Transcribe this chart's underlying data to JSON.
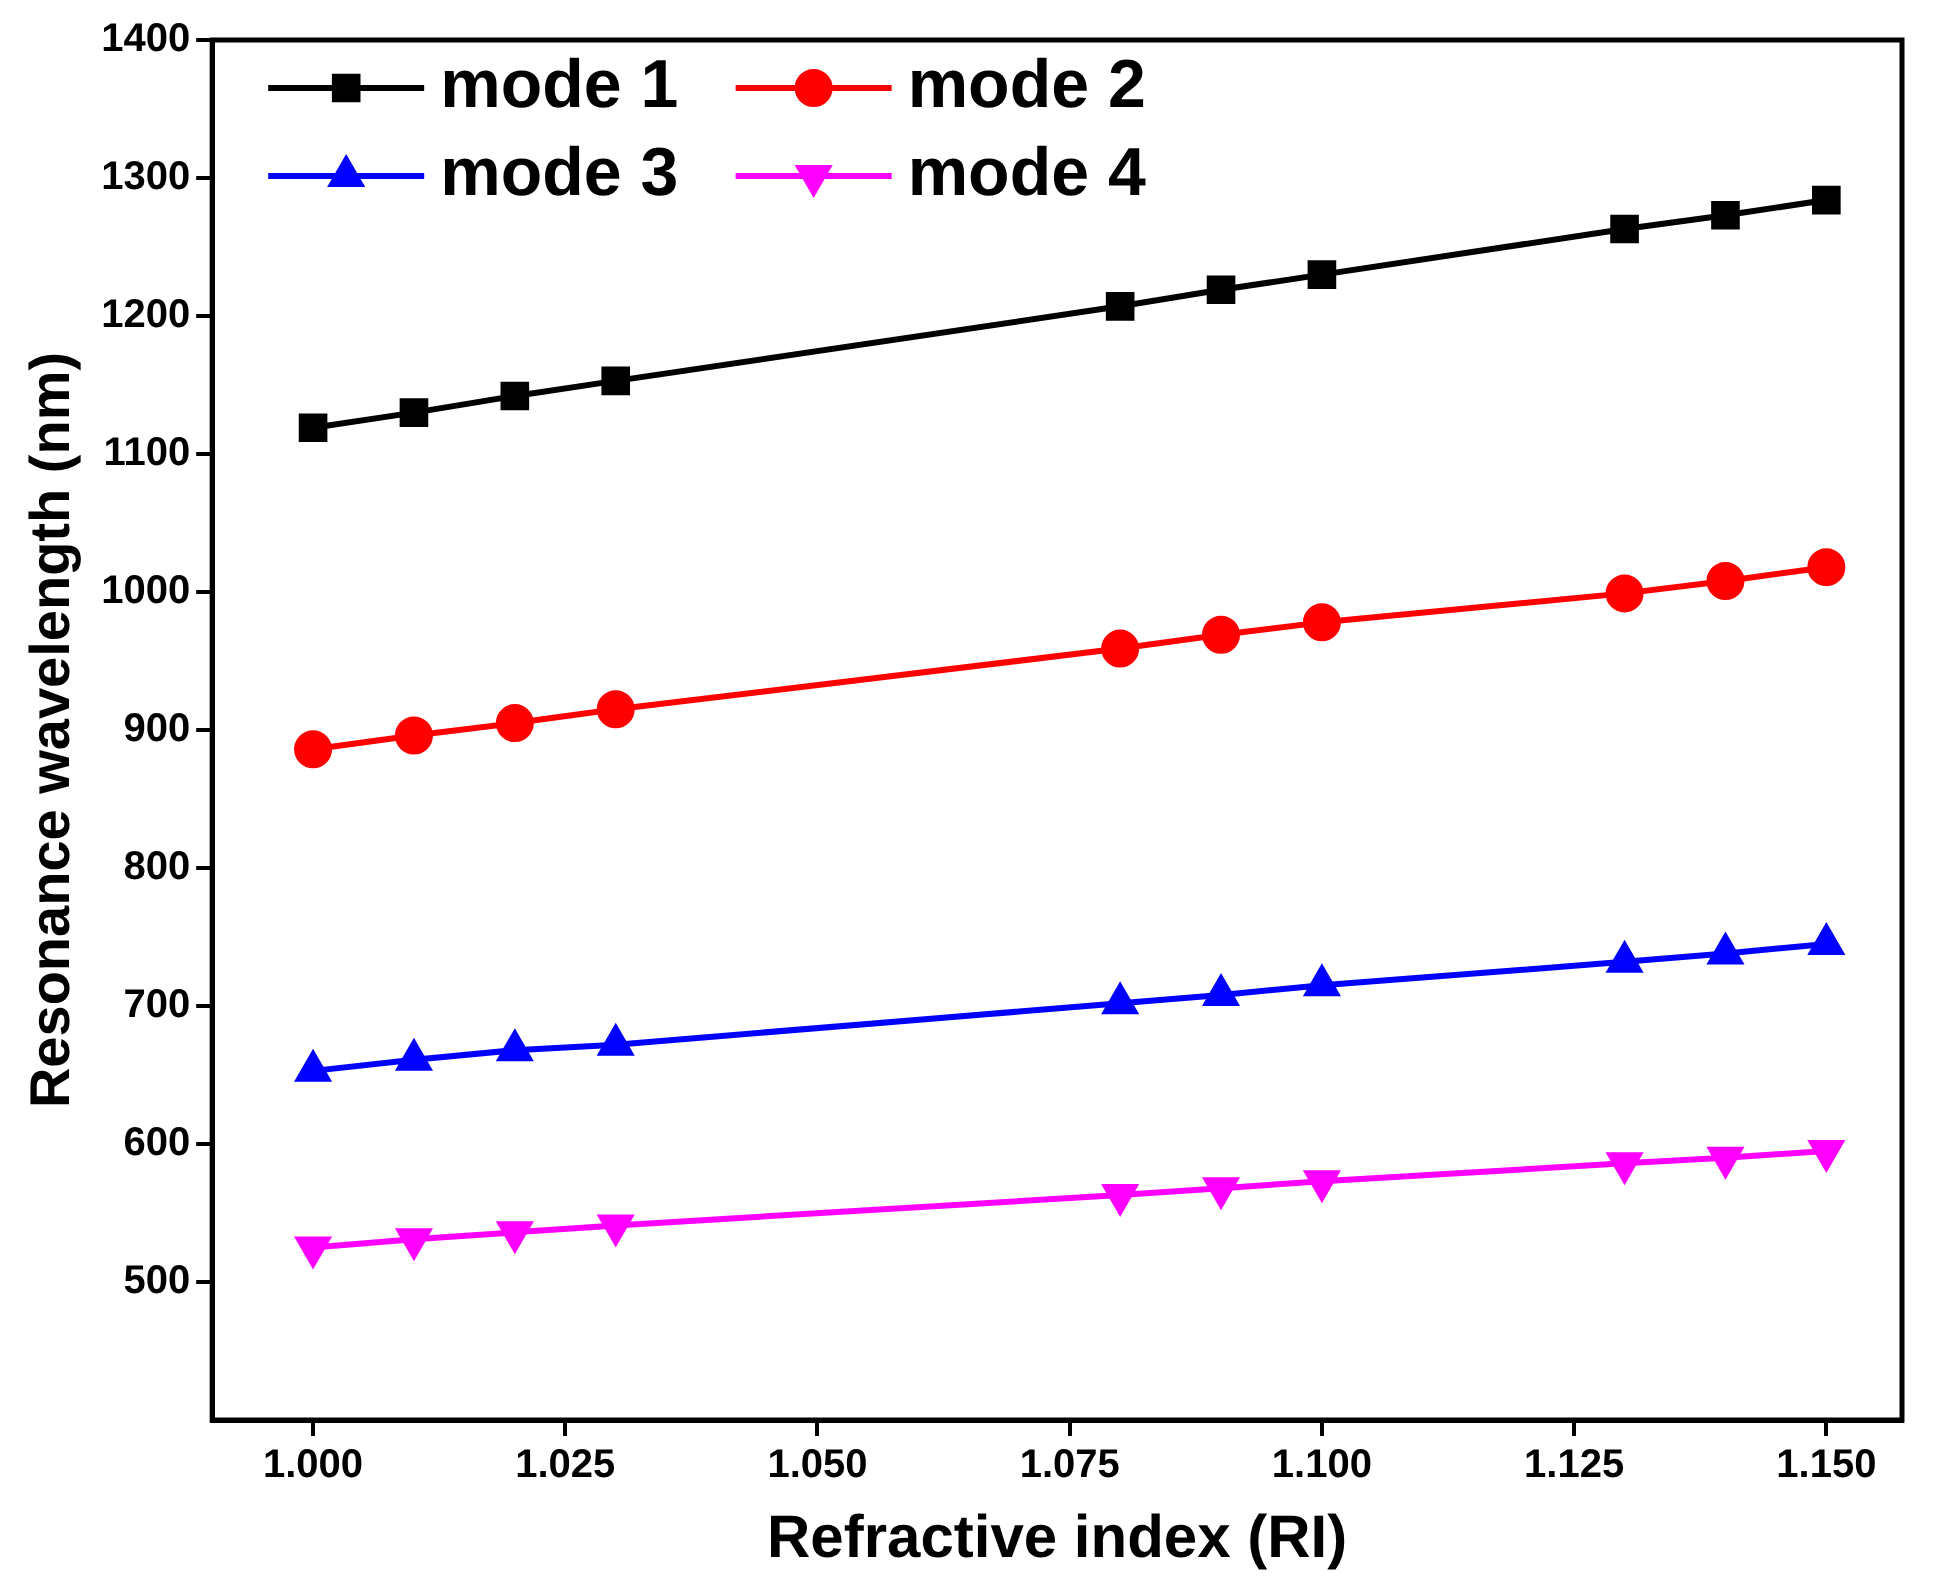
{
  "chart_data": {
    "type": "line",
    "xlabel": "Refractive index (RI)",
    "ylabel": "Resonance wavelength (nm)",
    "x": [
      1.0,
      1.01,
      1.02,
      1.03,
      1.08,
      1.09,
      1.1,
      1.13,
      1.14,
      1.15
    ],
    "series": [
      {
        "name": "mode 1",
        "color": "#000000",
        "marker": "square",
        "values": [
          1119,
          1130,
          1142,
          1153,
          1207,
          1219,
          1230,
          1263,
          1273,
          1284
        ]
      },
      {
        "name": "mode 2",
        "color": "#ff0000",
        "marker": "circle",
        "values": [
          886,
          896,
          905,
          915,
          959,
          969,
          978,
          999,
          1008,
          1018
        ]
      },
      {
        "name": "mode 3",
        "color": "#0000ff",
        "marker": "triangle",
        "values": [
          653,
          661,
          668,
          672,
          702,
          708,
          715,
          732,
          738,
          745
        ]
      },
      {
        "name": "mode 4",
        "color": "#ff00ff",
        "marker": "triangle_down",
        "values": [
          525,
          531,
          536,
          541,
          563,
          568,
          573,
          586,
          590,
          595
        ]
      }
    ],
    "xlim": [
      0.99,
      1.1575
    ],
    "ylim": [
      400,
      1400
    ],
    "xticks": [
      {
        "value": 1.0,
        "label": "1.000"
      },
      {
        "value": 1.025,
        "label": "1.025"
      },
      {
        "value": 1.05,
        "label": "1.050"
      },
      {
        "value": 1.075,
        "label": "1.075"
      },
      {
        "value": 1.1,
        "label": "1.100"
      },
      {
        "value": 1.125,
        "label": "1.125"
      },
      {
        "value": 1.15,
        "label": "1.150"
      }
    ],
    "yticks": [
      500,
      600,
      700,
      800,
      900,
      1000,
      1100,
      1200,
      1300,
      1400
    ],
    "grid": false,
    "legend": "top left",
    "line_style": "solid"
  }
}
